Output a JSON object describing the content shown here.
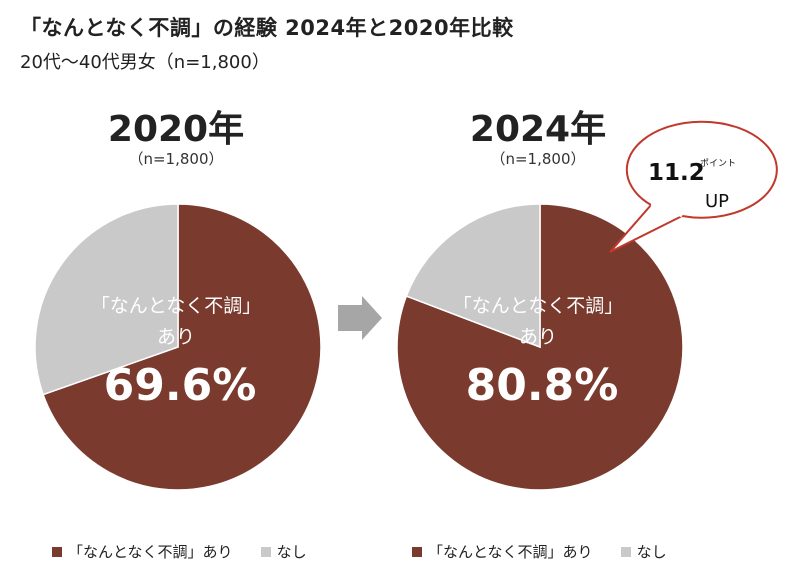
{
  "header": {
    "title": "「なんとなく不調」の経験 2024年と2020年比較",
    "subtitle": "20代～40代男女（n=1,800）"
  },
  "colors": {
    "yes": "#7a3b2e",
    "no": "#c9c9c9",
    "arrow": "#a6a6a6",
    "bubble_border": "#c0392b"
  },
  "chart_data": [
    {
      "type": "pie",
      "title": "2020年",
      "n_label": "（n=1,800）",
      "slices": [
        {
          "label": "「なんとなく不調」あり",
          "value": 69.6
        },
        {
          "label": "なし",
          "value": 30.4
        }
      ],
      "center_label": {
        "line1": "「なんとなく不調」",
        "line2": "あり",
        "value": "69.6%"
      },
      "legend": {
        "yes": "「なんとなく不調」あり",
        "no": "なし"
      }
    },
    {
      "type": "pie",
      "title": "2024年",
      "n_label": "（n=1,800）",
      "slices": [
        {
          "label": "「なんとなく不調」あり",
          "value": 80.8
        },
        {
          "label": "なし",
          "value": 19.2
        }
      ],
      "center_label": {
        "line1": "「なんとなく不調」",
        "line2": "あり",
        "value": "80.8%"
      },
      "legend": {
        "yes": "「なんとなく不調」あり",
        "no": "なし"
      }
    }
  ],
  "callout": {
    "value": "11.2",
    "unit": "ポイント",
    "label": "UP"
  }
}
